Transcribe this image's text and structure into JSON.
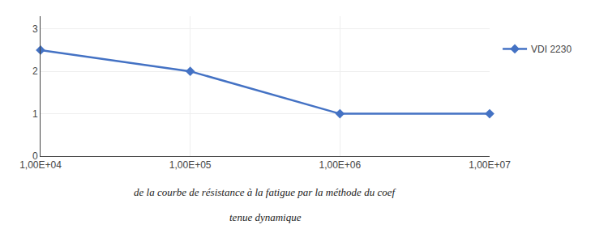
{
  "chart_data": {
    "type": "line",
    "x": [
      10000,
      100000,
      1000000,
      10000000
    ],
    "series": [
      {
        "name": "VDI 2230",
        "color": "#4472C4",
        "marker": "diamond",
        "values": [
          2.5,
          2.0,
          1.0,
          1.0
        ]
      }
    ],
    "log": "x",
    "xlim": [
      10000,
      10000000
    ],
    "xticks": [
      {
        "value": 10000,
        "label": "1,00E+04"
      },
      {
        "value": 100000,
        "label": "1,00E+05"
      },
      {
        "value": 1000000,
        "label": "1,00E+06"
      },
      {
        "value": 10000000,
        "label": "1,00E+07"
      }
    ],
    "ylim": [
      0,
      3.3
    ],
    "yticks": [
      0,
      1,
      2,
      3
    ],
    "grid": true,
    "legend": "right",
    "annotations": [
      "de la courbe de résistance à la fatigue par la méthode du coef",
      "tenue dynamique"
    ]
  }
}
